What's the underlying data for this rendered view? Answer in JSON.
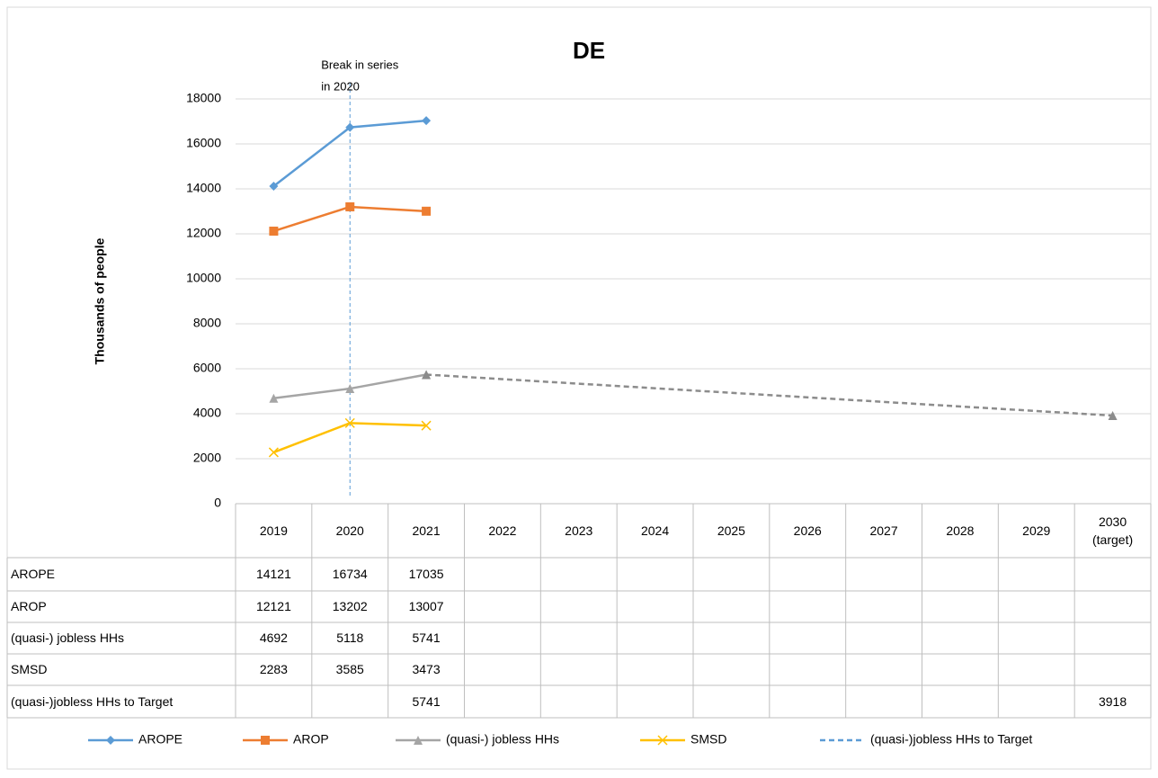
{
  "chart_data": {
    "type": "line",
    "title": "DE",
    "y_label": "Thousands  of people",
    "categories": [
      "2019",
      "2020",
      "2021",
      "2022",
      "2023",
      "2024",
      "2025",
      "2026",
      "2027",
      "2028",
      "2029",
      "2030\n(target)"
    ],
    "ylim": [
      0,
      18000
    ],
    "yticks": [
      0,
      2000,
      4000,
      6000,
      8000,
      10000,
      12000,
      14000,
      16000,
      18000
    ],
    "grid": true,
    "annotation": {
      "lines": [
        "Break in series",
        "in 2020"
      ],
      "at": "2020",
      "color": "#5b9bd5"
    },
    "legend": "bottom",
    "data_table": true,
    "series": [
      {
        "name": "AROPE",
        "color": "#5b9bd5",
        "marker": "diamond",
        "values": [
          14121,
          16734,
          17035,
          null,
          null,
          null,
          null,
          null,
          null,
          null,
          null,
          null
        ]
      },
      {
        "name": "AROP",
        "color": "#ed7d31",
        "marker": "square",
        "values": [
          12121,
          13202,
          13007,
          null,
          null,
          null,
          null,
          null,
          null,
          null,
          null,
          null
        ]
      },
      {
        "name": "(quasi-) jobless HHs",
        "color": "#a5a5a5",
        "marker": "triangle",
        "values": [
          4692,
          5118,
          5741,
          null,
          null,
          null,
          null,
          null,
          null,
          null,
          null,
          null
        ]
      },
      {
        "name": "SMSD",
        "color": "#ffc000",
        "marker": "x",
        "values": [
          2283,
          3585,
          3473,
          null,
          null,
          null,
          null,
          null,
          null,
          null,
          null,
          null
        ]
      },
      {
        "name": "(quasi-)jobless HHs to Target",
        "color": "#8c8c8c",
        "legend_color": "#5b9bd5",
        "marker": "triangle",
        "dashed": true,
        "connect_gaps": true,
        "values": [
          null,
          null,
          5741,
          null,
          null,
          null,
          null,
          null,
          null,
          null,
          null,
          3918
        ]
      }
    ]
  }
}
